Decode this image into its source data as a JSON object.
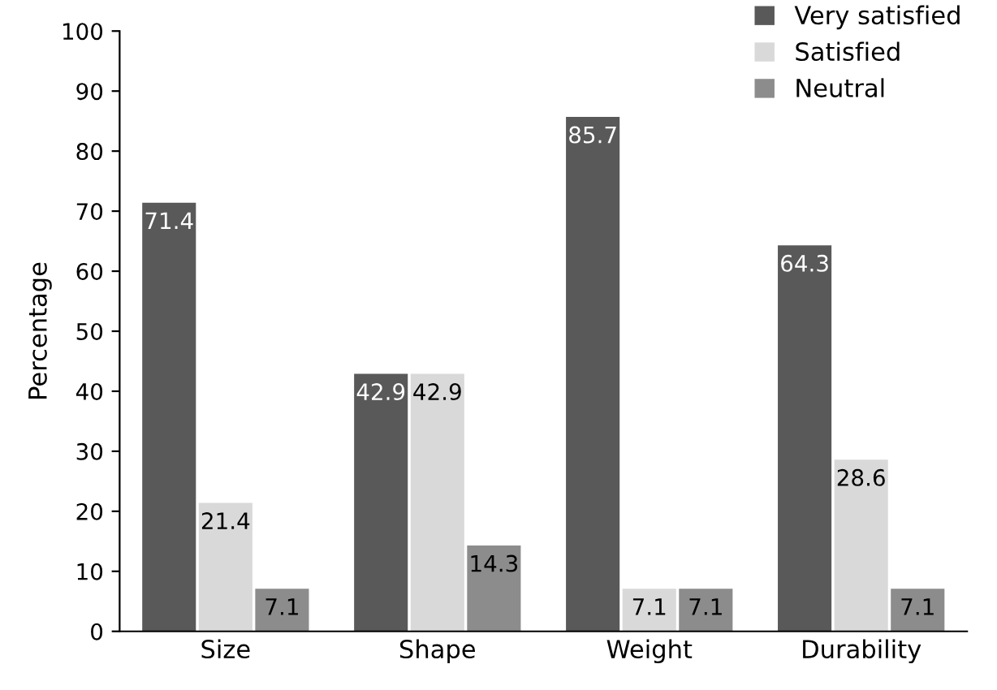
{
  "chart_data": {
    "type": "bar",
    "ylabel": "Percentage",
    "categories": [
      "Size",
      "Shape",
      "Weight",
      "Durability"
    ],
    "series": [
      {
        "name": "Very satisfied",
        "color": "#595959",
        "values": [
          71.4,
          42.9,
          85.7,
          64.3
        ]
      },
      {
        "name": "Satisfied",
        "color": "#d9d9d9",
        "values": [
          21.4,
          42.9,
          7.1,
          28.6
        ]
      },
      {
        "name": "Neutral",
        "color": "#8c8c8c",
        "values": [
          7.1,
          14.3,
          7.1,
          7.1
        ]
      }
    ],
    "ylim": [
      0,
      100
    ],
    "yticks": [
      0,
      10,
      20,
      30,
      40,
      50,
      60,
      70,
      80,
      90,
      100
    ],
    "data_labels": true,
    "legend": "top right"
  }
}
